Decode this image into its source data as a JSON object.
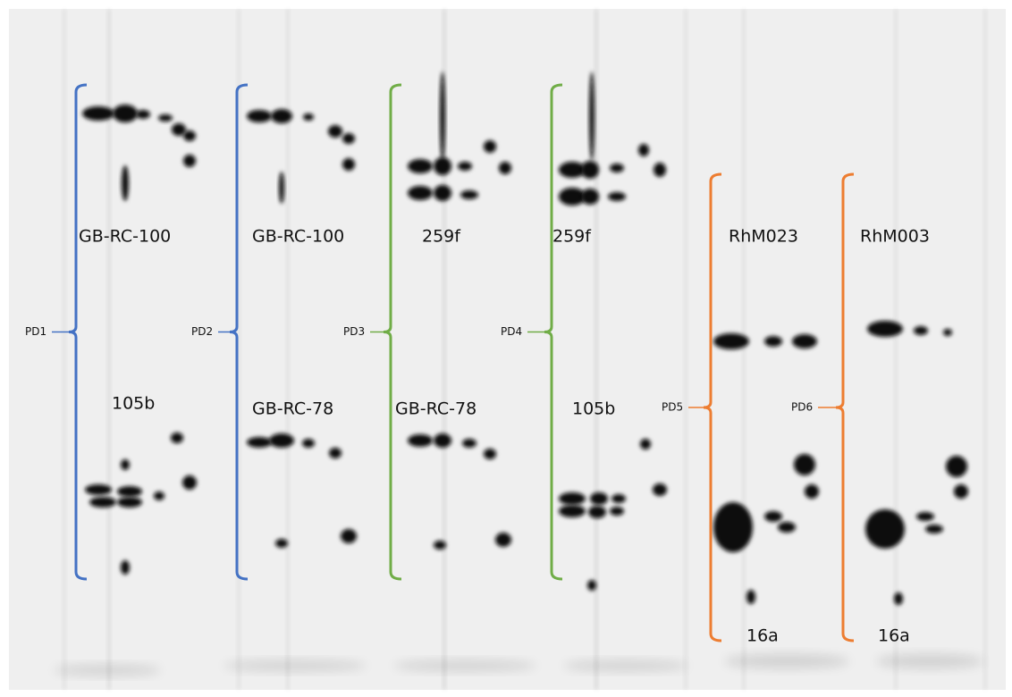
{
  "groups": [
    {
      "label": "PD1",
      "color": "#4472c4",
      "samples": [
        "GB-RC-100",
        "105b"
      ]
    },
    {
      "label": "PD2",
      "color": "#4472c4",
      "samples": [
        "GB-RC-100",
        "GB-RC-78"
      ]
    },
    {
      "label": "PD3",
      "color": "#70ad47",
      "samples": [
        "259f",
        "GB-RC-78"
      ]
    },
    {
      "label": "PD4",
      "color": "#70ad47",
      "samples": [
        "259f",
        "105b"
      ]
    },
    {
      "label": "PD5",
      "color": "#ed7d31",
      "samples": [
        "RhM023",
        "16a"
      ]
    },
    {
      "label": "PD6",
      "color": "#ed7d31",
      "samples": [
        "RhM003",
        "16a"
      ]
    }
  ]
}
